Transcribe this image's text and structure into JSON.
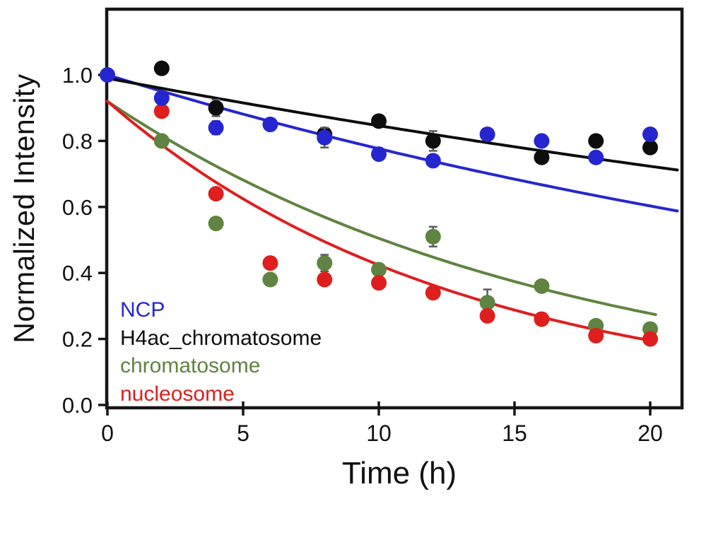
{
  "page": {
    "background": "#ffffff",
    "frame_color": "#161616"
  },
  "chart_data": {
    "type": "scatter",
    "title": "",
    "xlabel": "Time (h)",
    "ylabel": "Normalized Intensity",
    "xlim": [
      0,
      21.2
    ],
    "ylim": [
      0,
      1.2
    ],
    "xticks": [
      0,
      5,
      10,
      15,
      20
    ],
    "yticks": [
      0.0,
      0.2,
      0.4,
      0.6,
      0.8,
      1.0
    ],
    "grid": false,
    "legend_position": "inside-bottom-left",
    "marker_style": "filled-circle",
    "fit_model": "y = y0 * exp(-k * t)",
    "series": [
      {
        "name": "NCP",
        "color": "#2526cf",
        "x": [
          0,
          2,
          4,
          6,
          8,
          10,
          12,
          14,
          16,
          18,
          20
        ],
        "y": [
          1.0,
          0.93,
          0.84,
          0.85,
          0.81,
          0.76,
          0.74,
          0.82,
          0.8,
          0.75,
          0.82
        ],
        "yerr": [
          0,
          0.02,
          0.02,
          0,
          0.03,
          0.015,
          0,
          0,
          0,
          0,
          0
        ],
        "fit": {
          "y0": 1.0,
          "k": 0.0253,
          "t_end": 21.1
        }
      },
      {
        "name": "H4ac_chromatosome",
        "color": "#0d0d0d",
        "x": [
          2,
          4,
          8,
          10,
          12,
          16,
          18,
          20
        ],
        "y": [
          1.02,
          0.9,
          0.82,
          0.86,
          0.8,
          0.75,
          0.8,
          0.78
        ],
        "yerr": [
          0,
          0.025,
          0,
          0,
          0.03,
          0,
          0,
          0
        ],
        "fit": {
          "y0": 0.99,
          "k": 0.0157,
          "t_end": 21.1
        }
      },
      {
        "name": "chromatosome",
        "color": "#5f8340",
        "x": [
          2,
          4,
          6,
          8,
          10,
          12,
          14,
          16,
          18,
          20
        ],
        "y": [
          0.8,
          0.55,
          0.38,
          0.43,
          0.41,
          0.51,
          0.31,
          0.36,
          0.24,
          0.23
        ],
        "yerr": [
          0,
          0,
          0,
          0.025,
          0,
          0.03,
          0.04,
          0,
          0,
          0
        ],
        "fit": {
          "y0": 0.92,
          "k": 0.06,
          "t_end": 20.2
        }
      },
      {
        "name": "nucleosome",
        "color": "#df1e1e",
        "x": [
          2,
          4,
          6,
          8,
          10,
          12,
          14,
          16,
          18,
          20
        ],
        "y": [
          0.89,
          0.64,
          0.43,
          0.38,
          0.37,
          0.34,
          0.27,
          0.26,
          0.21,
          0.2
        ],
        "yerr": [
          0,
          0,
          0,
          0,
          0,
          0,
          0,
          0,
          0,
          0
        ],
        "fit": {
          "y0": 0.92,
          "k": 0.0775,
          "t_end": 20.25
        }
      }
    ]
  }
}
